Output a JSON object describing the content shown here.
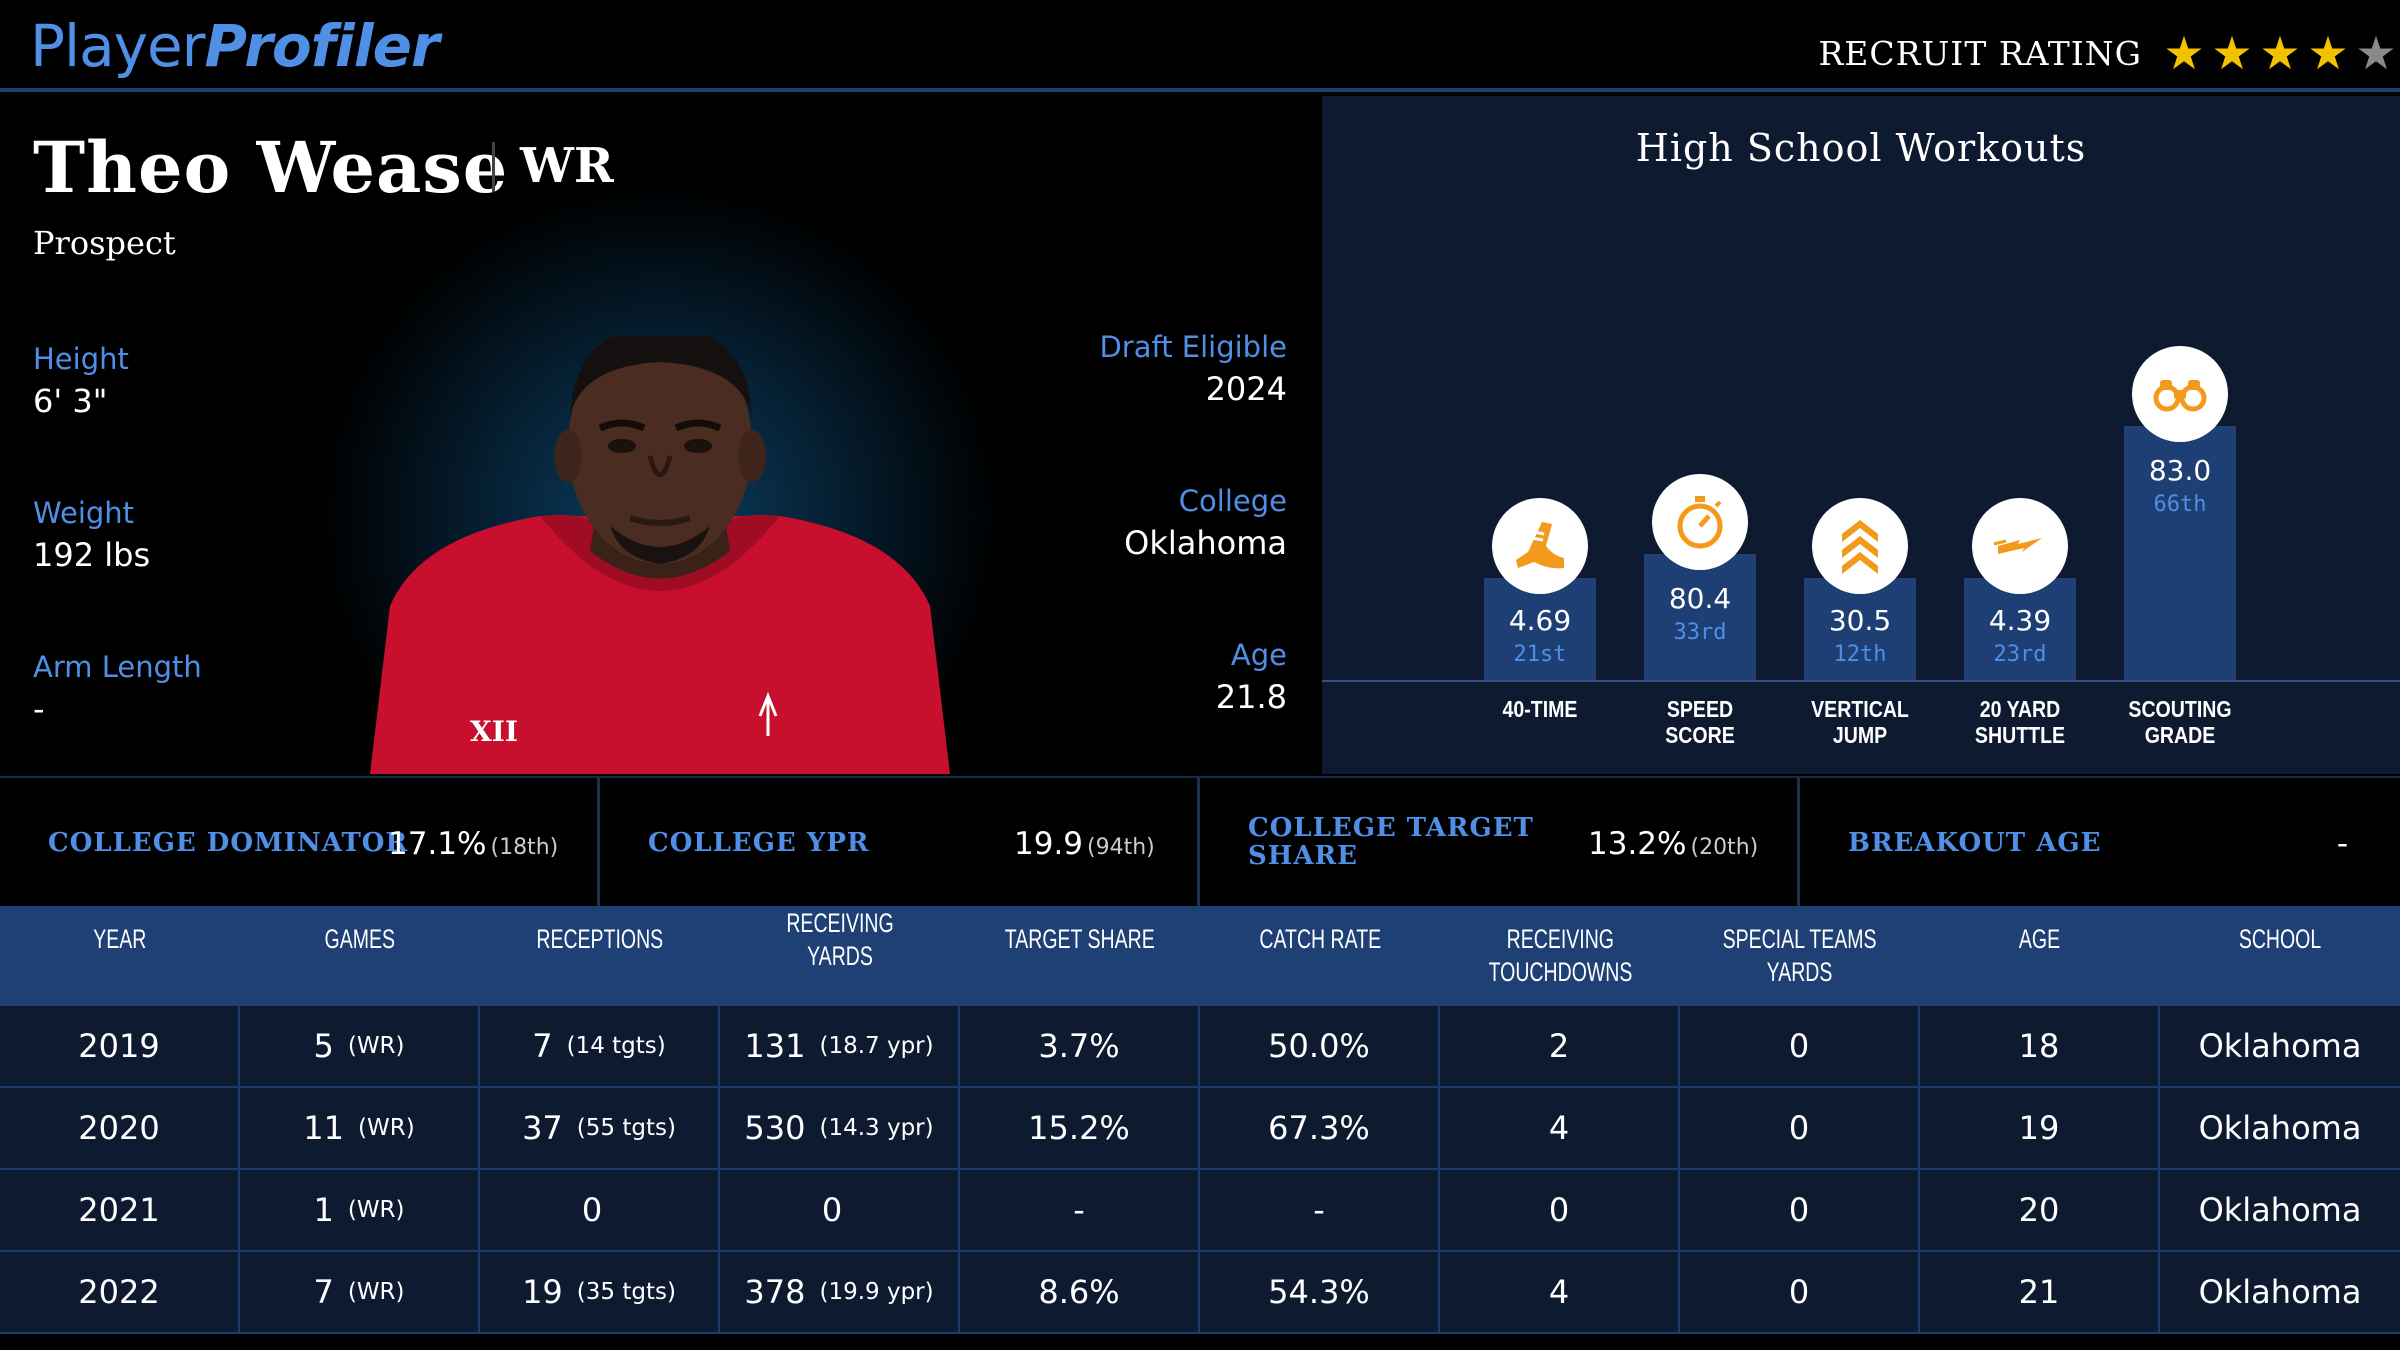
{
  "header": {
    "logo_light": "Player",
    "logo_bold": "Profiler",
    "rating_label": "RECRUIT RATING",
    "rating_value": 4,
    "rating_max": 5,
    "star_color": "#f2c200"
  },
  "player": {
    "name": "Theo Wease",
    "position": "WR",
    "status": "Prospect",
    "height_label": "Height",
    "height": "6' 3\"",
    "weight_label": "Weight",
    "weight": "192 lbs",
    "arm_label": "Arm Length",
    "arm": "-",
    "draft_label": "Draft Eligible",
    "draft": "2024",
    "college_label": "College",
    "college": "Oklahoma",
    "age_label": "Age",
    "age": "21.8",
    "jersey_color": "#c8102e"
  },
  "workouts": {
    "title": "High School Workouts",
    "items": [
      {
        "icon": "running-shoe-icon",
        "value": "4.69",
        "rank": "21st",
        "label1": "40-TIME",
        "label2": ""
      },
      {
        "icon": "stopwatch-icon",
        "value": "80.4",
        "rank": "33rd",
        "label1": "SPEED",
        "label2": "SCORE"
      },
      {
        "icon": "chevrons-up-icon",
        "value": "30.5",
        "rank": "12th",
        "label1": "VERTICAL",
        "label2": "JUMP"
      },
      {
        "icon": "lightning-icon",
        "value": "4.39",
        "rank": "23rd",
        "label1": "20 YARD",
        "label2": "SHUTTLE"
      },
      {
        "icon": "binoculars-icon",
        "value": "83.0",
        "rank": "66th",
        "label1": "SCOUTING",
        "label2": "GRADE"
      }
    ],
    "accent": "#f39a1c"
  },
  "metrics": [
    {
      "label1": "COLLEGE DOMINATOR",
      "label2": "",
      "value": "17.1%",
      "rank": "(18th)"
    },
    {
      "label1": "COLLEGE YPR",
      "label2": "",
      "value": "19.9",
      "rank": "(94th)"
    },
    {
      "label1": "COLLEGE TARGET",
      "label2": "SHARE",
      "value": "13.2%",
      "rank": "(20th)"
    },
    {
      "label1": "BREAKOUT AGE",
      "label2": "",
      "value": "-",
      "rank": ""
    }
  ],
  "table": {
    "headers": [
      {
        "l1": "YEAR",
        "l2": ""
      },
      {
        "l1": "GAMES",
        "l2": ""
      },
      {
        "l1": "RECEPTIONS",
        "l2": ""
      },
      {
        "l1": "RECEIVING YARDS",
        "l2": ""
      },
      {
        "l1": "TARGET SHARE",
        "l2": ""
      },
      {
        "l1": "CATCH RATE",
        "l2": ""
      },
      {
        "l1": "RECEIVING",
        "l2": "TOUCHDOWNS"
      },
      {
        "l1": "SPECIAL TEAMS",
        "l2": "YARDS"
      },
      {
        "l1": "AGE",
        "l2": ""
      },
      {
        "l1": "SCHOOL",
        "l2": ""
      }
    ],
    "rows": [
      {
        "year": "2019",
        "games": "5",
        "games_sub": "(WR)",
        "rec": "7",
        "rec_sub": "(14 tgts)",
        "yds": "131",
        "yds_sub": "(18.7 ypr)",
        "ts": "3.7%",
        "cr": "50.0%",
        "td": "2",
        "st": "0",
        "age": "18",
        "school": "Oklahoma"
      },
      {
        "year": "2020",
        "games": "11",
        "games_sub": "(WR)",
        "rec": "37",
        "rec_sub": "(55 tgts)",
        "yds": "530",
        "yds_sub": "(14.3 ypr)",
        "ts": "15.2%",
        "cr": "67.3%",
        "td": "4",
        "st": "0",
        "age": "19",
        "school": "Oklahoma"
      },
      {
        "year": "2021",
        "games": "1",
        "games_sub": "(WR)",
        "rec": "0",
        "rec_sub": "",
        "yds": "0",
        "yds_sub": "",
        "ts": "-",
        "cr": "-",
        "td": "0",
        "st": "0",
        "age": "20",
        "school": "Oklahoma"
      },
      {
        "year": "2022",
        "games": "7",
        "games_sub": "(WR)",
        "rec": "19",
        "rec_sub": "(35 tgts)",
        "yds": "378",
        "yds_sub": "(19.9 ypr)",
        "ts": "8.6%",
        "cr": "54.3%",
        "td": "4",
        "st": "0",
        "age": "21",
        "school": "Oklahoma"
      }
    ]
  }
}
